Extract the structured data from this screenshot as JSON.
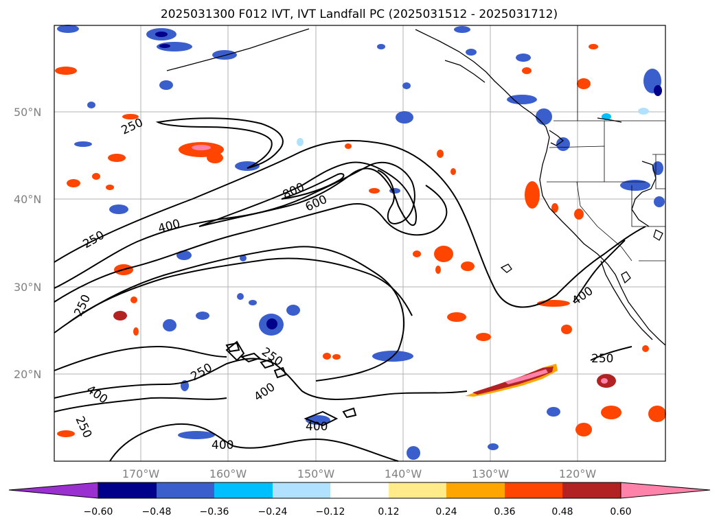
{
  "title": "2025031300 F012 IVT, IVT Landfall PC (2025031512 - 2025031712)",
  "lat_labels": [
    "50°N",
    "40°N",
    "30°N",
    "20°N"
  ],
  "lon_labels": [
    "170°W",
    "160°W",
    "150°W",
    "140°W",
    "130°W",
    "120°W"
  ],
  "colorbar": {
    "ticks": [
      "−0.60",
      "−0.48",
      "−0.36",
      "−0.24",
      "−0.12",
      "0.12",
      "0.24",
      "0.36",
      "0.48",
      "0.60"
    ],
    "colors": [
      "#9b30d0",
      "#00008b",
      "#3a5fcd",
      "#00bfff",
      "#b0e2ff",
      "#ffffff",
      "#ffeb8a",
      "#ffa500",
      "#ff4500",
      "#b22222",
      "#ff82ab"
    ]
  },
  "contour_labels": {
    "c250_a": "250",
    "c250_b": "250",
    "c250_c": "250",
    "c250_d": "250",
    "c250_e": "250",
    "c250_f": "250",
    "c250_g": "250",
    "c400_a": "400",
    "c400_b": "400",
    "c400_c": "400",
    "c400_d": "400",
    "c400_e": "400",
    "c600": "600",
    "c800": "800"
  }
}
